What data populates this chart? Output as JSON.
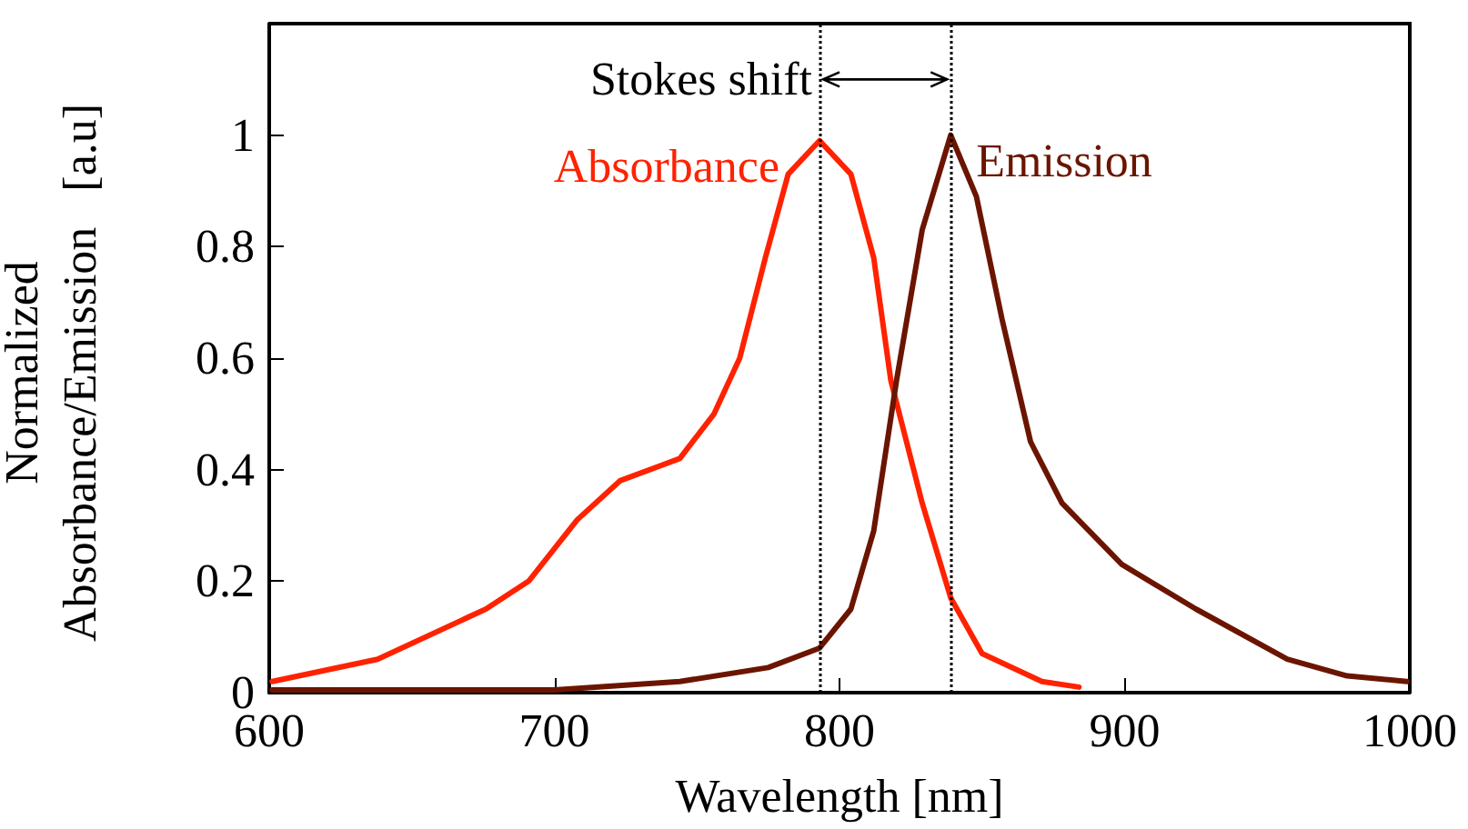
{
  "chart_data": {
    "type": "line",
    "xlabel": "Wavelength [nm]",
    "ylabel": "Normalized\nAbsorbance/Emission   [a.u]",
    "xlim": [
      600,
      1000
    ],
    "xticks": [
      600,
      700,
      800,
      900,
      1000
    ],
    "ylim": [
      0,
      1.2
    ],
    "yticks": [
      0,
      0.2,
      0.4,
      0.6,
      0.8,
      1
    ],
    "grid": false,
    "legend": false,
    "marker": "none",
    "line_style": "solid",
    "series": [
      {
        "name": "Absorbance",
        "color": "#ff2200",
        "x": [
          601,
          638,
          676,
          691,
          708,
          723,
          744,
          756,
          765,
          774,
          782,
          793,
          804,
          812,
          818,
          829,
          839,
          850,
          871,
          884
        ],
        "values": [
          0.02,
          0.06,
          0.15,
          0.2,
          0.31,
          0.38,
          0.42,
          0.5,
          0.6,
          0.78,
          0.93,
          0.99,
          0.93,
          0.78,
          0.56,
          0.34,
          0.17,
          0.07,
          0.02,
          0.01
        ]
      },
      {
        "name": "Emission",
        "color": "#6b1500",
        "x": [
          601,
          700,
          744,
          775,
          793,
          804,
          812,
          820,
          829,
          839,
          848,
          857,
          867,
          878,
          899,
          925,
          957,
          978,
          999
        ],
        "values": [
          0.005,
          0.005,
          0.02,
          0.045,
          0.08,
          0.15,
          0.29,
          0.56,
          0.83,
          1.0,
          0.89,
          0.67,
          0.45,
          0.34,
          0.23,
          0.15,
          0.06,
          0.03,
          0.02
        ]
      }
    ],
    "ref_lines": [
      {
        "axis": "x",
        "value": 793,
        "color": "#000000",
        "line_style": "dotted"
      },
      {
        "axis": "x",
        "value": 839,
        "color": "#000000",
        "line_style": "dotted"
      }
    ],
    "annotations": [
      {
        "text": "Stokes shift",
        "x": 793,
        "y": 1.1
      }
    ]
  }
}
